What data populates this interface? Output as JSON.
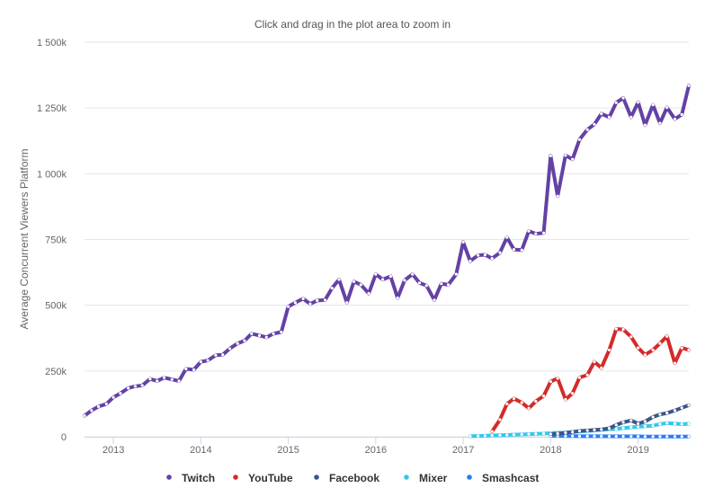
{
  "chart_data": {
    "type": "line",
    "subtitle": "Click and drag in the plot area to zoom in",
    "ylabel": "Average Concurrent Viewers Platform",
    "xlabel": "",
    "xlim": [
      2012.67,
      2019.58
    ],
    "ylim": [
      0,
      1500000
    ],
    "y_ticks": [
      0,
      250000,
      500000,
      750000,
      1000000,
      1250000,
      1500000
    ],
    "y_tick_labels": [
      "0",
      "250k",
      "500k",
      "750k",
      "1 000k",
      "1 250k",
      "1 500k"
    ],
    "x_ticks": [
      2013,
      2014,
      2015,
      2016,
      2017,
      2018,
      2019
    ],
    "x_tick_labels": [
      "2013",
      "2014",
      "2015",
      "2016",
      "2017",
      "2018",
      "2019"
    ],
    "grid": "horizontal",
    "legend_position": "bottom-center",
    "series": [
      {
        "name": "Twitch",
        "color": "#6441a5",
        "x": [
          2012.67,
          2012.75,
          2012.83,
          2012.92,
          2013.0,
          2013.08,
          2013.17,
          2013.25,
          2013.33,
          2013.42,
          2013.5,
          2013.58,
          2013.67,
          2013.75,
          2013.83,
          2013.92,
          2014.0,
          2014.08,
          2014.17,
          2014.25,
          2014.33,
          2014.42,
          2014.5,
          2014.58,
          2014.67,
          2014.75,
          2014.83,
          2014.92,
          2015.0,
          2015.08,
          2015.17,
          2015.25,
          2015.33,
          2015.42,
          2015.5,
          2015.58,
          2015.67,
          2015.75,
          2015.83,
          2015.92,
          2016.0,
          2016.08,
          2016.17,
          2016.25,
          2016.33,
          2016.42,
          2016.5,
          2016.58,
          2016.67,
          2016.75,
          2016.83,
          2016.92,
          2017.0,
          2017.08,
          2017.17,
          2017.25,
          2017.33,
          2017.42,
          2017.5,
          2017.58,
          2017.67,
          2017.75,
          2017.83,
          2017.92,
          2018.0,
          2018.08,
          2018.17,
          2018.25,
          2018.33,
          2018.42,
          2018.5,
          2018.58,
          2018.67,
          2018.75,
          2018.83,
          2018.92,
          2019.0,
          2019.08,
          2019.17,
          2019.25,
          2019.33,
          2019.42,
          2019.5,
          2019.58
        ],
        "values": [
          80000,
          100000,
          115000,
          125000,
          150000,
          165000,
          185000,
          192000,
          195000,
          220000,
          212000,
          225000,
          218000,
          212000,
          258000,
          255000,
          285000,
          290000,
          310000,
          312000,
          335000,
          355000,
          365000,
          392000,
          385000,
          378000,
          392000,
          398000,
          495000,
          510000,
          525000,
          505000,
          518000,
          520000,
          565000,
          598000,
          510000,
          590000,
          578000,
          545000,
          618000,
          598000,
          610000,
          528000,
          595000,
          618000,
          585000,
          575000,
          520000,
          582000,
          578000,
          618000,
          740000,
          668000,
          690000,
          692000,
          678000,
          700000,
          758000,
          712000,
          710000,
          782000,
          772000,
          775000,
          1068000,
          915000,
          1070000,
          1055000,
          1130000,
          1168000,
          1188000,
          1228000,
          1215000,
          1270000,
          1288000,
          1215000,
          1272000,
          1185000,
          1262000,
          1192000,
          1252000,
          1208000,
          1225000,
          1335000
        ]
      },
      {
        "name": "YouTube",
        "color": "#d32a2a",
        "x": [
          2017.33,
          2017.42,
          2017.5,
          2017.58,
          2017.67,
          2017.75,
          2017.83,
          2017.92,
          2018.0,
          2018.08,
          2018.17,
          2018.25,
          2018.33,
          2018.42,
          2018.5,
          2018.58,
          2018.67,
          2018.75,
          2018.83,
          2018.92,
          2019.0,
          2019.08,
          2019.17,
          2019.25,
          2019.33,
          2019.42,
          2019.5,
          2019.58
        ],
        "values": [
          20000,
          65000,
          125000,
          145000,
          130000,
          108000,
          135000,
          155000,
          210000,
          222000,
          142000,
          165000,
          225000,
          235000,
          285000,
          262000,
          330000,
          410000,
          408000,
          380000,
          338000,
          312000,
          330000,
          355000,
          382000,
          280000,
          338000,
          330000
        ]
      },
      {
        "name": "Facebook",
        "color": "#3b5586",
        "x": [
          2018.0,
          2018.08,
          2018.17,
          2018.25,
          2018.33,
          2018.42,
          2018.5,
          2018.58,
          2018.67,
          2018.75,
          2018.83,
          2018.92,
          2019.0,
          2019.08,
          2019.17,
          2019.25,
          2019.33,
          2019.42,
          2019.5,
          2019.58
        ],
        "values": [
          10000,
          12000,
          15000,
          18000,
          22000,
          24000,
          26000,
          28000,
          32000,
          45000,
          55000,
          62000,
          50000,
          58000,
          75000,
          85000,
          90000,
          100000,
          110000,
          120000
        ]
      },
      {
        "name": "Mixer",
        "color": "#33c8ea",
        "x": [
          2017.08,
          2017.17,
          2017.25,
          2017.33,
          2017.42,
          2017.5,
          2017.58,
          2017.67,
          2017.75,
          2017.83,
          2017.92,
          2018.0,
          2018.08,
          2018.17,
          2018.25,
          2018.33,
          2018.42,
          2018.5,
          2018.58,
          2018.67,
          2018.75,
          2018.83,
          2018.92,
          2019.0,
          2019.08,
          2019.17,
          2019.25,
          2019.33,
          2019.42,
          2019.5,
          2019.58
        ],
        "values": [
          2000,
          3000,
          4000,
          5000,
          6000,
          7000,
          8000,
          9000,
          10000,
          11000,
          12000,
          14000,
          15000,
          16000,
          18000,
          20000,
          22000,
          24000,
          26000,
          28000,
          30000,
          33000,
          36000,
          38000,
          40000,
          42000,
          48000,
          52000,
          50000,
          48000,
          49000
        ]
      },
      {
        "name": "Smashcast",
        "color": "#2b7bf0",
        "x": [
          2018.0,
          2018.08,
          2018.17,
          2018.25,
          2018.33,
          2018.42,
          2018.5,
          2018.58,
          2018.67,
          2018.75,
          2018.83,
          2018.92,
          2019.0,
          2019.08,
          2019.17,
          2019.25,
          2019.33,
          2019.42,
          2019.5,
          2019.58
        ],
        "values": [
          3000,
          3000,
          2500,
          2500,
          2000,
          2000,
          2000,
          2000,
          1500,
          1500,
          1500,
          1500,
          1500,
          1000,
          1000,
          1000,
          1000,
          1000,
          1000,
          1000
        ]
      }
    ]
  }
}
